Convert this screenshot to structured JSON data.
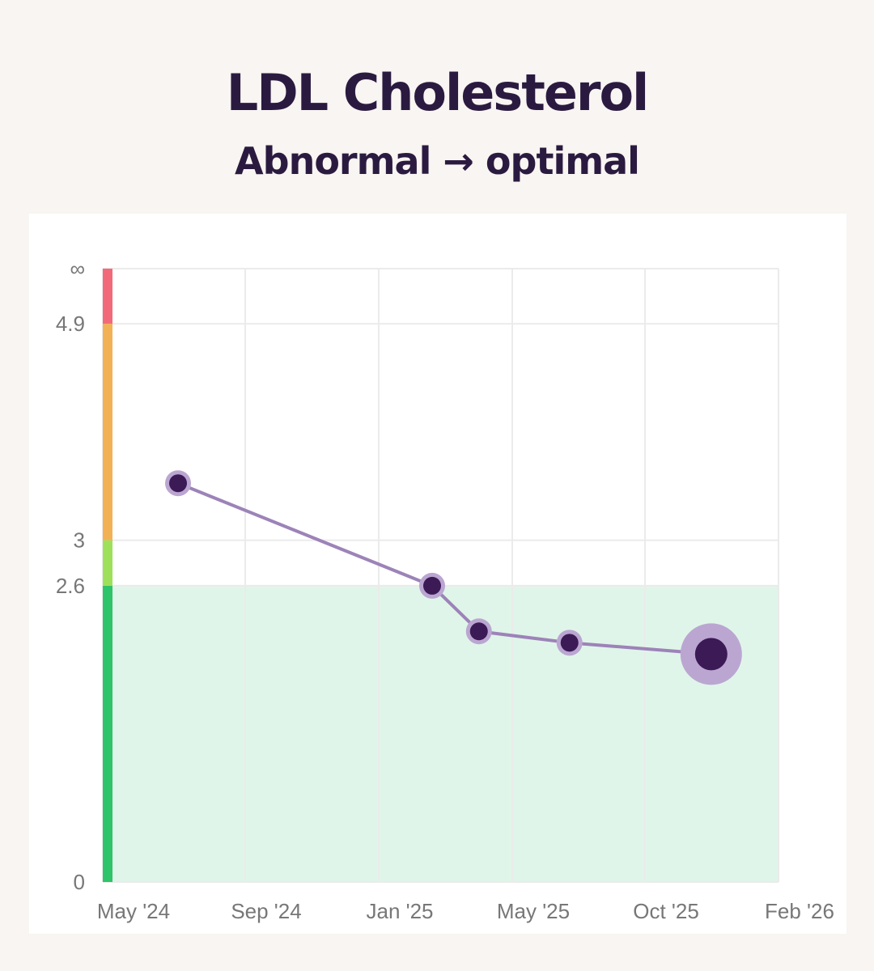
{
  "header": {
    "title": "LDL Cholesterol",
    "subtitle": "Abnormal → optimal"
  },
  "chart_data": {
    "type": "line",
    "title": "LDL Cholesterol",
    "subtitle": "Abnormal → optimal",
    "x_ticks": [
      {
        "label": "May '24",
        "date": "2024-05-01"
      },
      {
        "label": "Sep '24",
        "date": "2024-09-01"
      },
      {
        "label": "Jan '25",
        "date": "2025-01-01"
      },
      {
        "label": "May '25",
        "date": "2025-05-01"
      },
      {
        "label": "Oct '25",
        "date": "2025-10-01"
      },
      {
        "label": "Feb '26",
        "date": "2026-02-01"
      }
    ],
    "y_ticks": [
      {
        "label": "0",
        "value": 0
      },
      {
        "label": "2.6",
        "value": 2.6
      },
      {
        "label": "3",
        "value": 3
      },
      {
        "label": "4.9",
        "value": 4.9
      },
      {
        "label": "∞",
        "value": "inf"
      }
    ],
    "ylim": [
      0,
      "inf"
    ],
    "grid": true,
    "zones": [
      {
        "from": 0,
        "to": 2.6,
        "color": "#2ec46a",
        "shaded": true,
        "shade_color": "#e0f5e9"
      },
      {
        "from": 2.6,
        "to": 3,
        "color": "#9fe05a"
      },
      {
        "from": 3,
        "to": 4.9,
        "color": "#f2b155"
      },
      {
        "from": 4.9,
        "to": "inf",
        "color": "#f26a7a"
      }
    ],
    "series": [
      {
        "line_color": "#9c83b8",
        "point_color": "#3b1a55",
        "halo_color": "#bba6d2",
        "points": [
          {
            "x": "2024-07-05",
            "y": 3.5
          },
          {
            "x": "2025-02-18",
            "y": 2.6
          },
          {
            "x": "2025-04-01",
            "y": 2.2
          },
          {
            "x": "2025-07-06",
            "y": 2.1
          },
          {
            "x": "2025-12-01",
            "y": 2.0,
            "highlighted": true
          }
        ]
      }
    ]
  }
}
